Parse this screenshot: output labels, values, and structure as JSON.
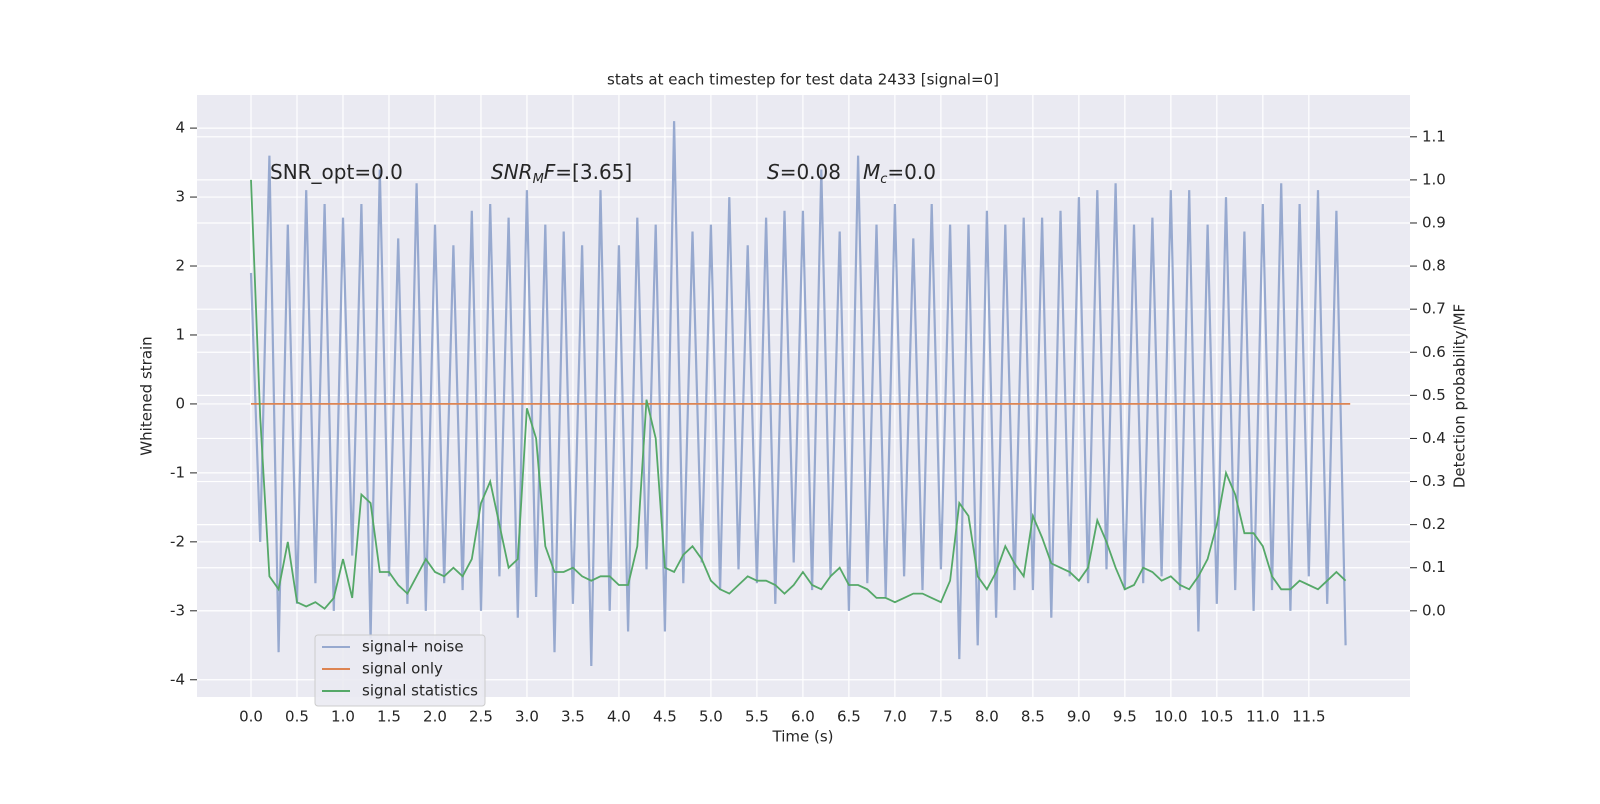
{
  "chart_data": {
    "type": "line",
    "title": "stats at each timestep for test data 2433 [signal=0]",
    "xlabel": "Time (s)",
    "ylabel": "Whitened strain",
    "y2label": "Detection probability/MF",
    "x": [
      0.0,
      0.1,
      0.2,
      0.3,
      0.4,
      0.5,
      0.6,
      0.7,
      0.8,
      0.9,
      1.0,
      1.1,
      1.2,
      1.3,
      1.4,
      1.5,
      1.6,
      1.7,
      1.8,
      1.9,
      2.0,
      2.1,
      2.2,
      2.3,
      2.4,
      2.5,
      2.6,
      2.7,
      2.8,
      2.9,
      3.0,
      3.1,
      3.2,
      3.3,
      3.4,
      3.5,
      3.6,
      3.7,
      3.8,
      3.9,
      4.0,
      4.1,
      4.2,
      4.3,
      4.4,
      4.5,
      4.6,
      4.7,
      4.8,
      4.9,
      5.0,
      5.1,
      5.2,
      5.3,
      5.4,
      5.5,
      5.6,
      5.7,
      5.8,
      5.9,
      6.0,
      6.1,
      6.2,
      6.3,
      6.4,
      6.5,
      6.6,
      6.7,
      6.8,
      6.9,
      7.0,
      7.1,
      7.2,
      7.3,
      7.4,
      7.5,
      7.6,
      7.7,
      7.8,
      7.9,
      8.0,
      8.1,
      8.2,
      8.3,
      8.4,
      8.5,
      8.6,
      8.7,
      8.8,
      8.9,
      9.0,
      9.1,
      9.2,
      9.3,
      9.4,
      9.5,
      9.6,
      9.7,
      9.8,
      9.9,
      10.0,
      10.1,
      10.2,
      10.3,
      10.4,
      10.5,
      10.6,
      10.7,
      10.8,
      10.9,
      11.0,
      11.1,
      11.2,
      11.3,
      11.4,
      11.5,
      11.6,
      11.7,
      11.8,
      11.9
    ],
    "series": [
      {
        "name": "signal+ noise",
        "color": "#97a9cf",
        "values": [
          1.9,
          -2.0,
          3.6,
          -3.6,
          2.6,
          -2.9,
          3.1,
          -2.6,
          2.9,
          -3.0,
          2.7,
          -2.2,
          2.9,
          -3.4,
          3.4,
          -2.5,
          2.4,
          -2.9,
          3.2,
          -3.0,
          2.6,
          -2.6,
          2.3,
          -2.7,
          2.8,
          -3.0,
          2.9,
          -2.5,
          2.7,
          -3.1,
          3.1,
          -2.8,
          2.6,
          -3.6,
          2.5,
          -2.9,
          2.3,
          -3.8,
          3.1,
          -3.0,
          2.3,
          -3.3,
          2.7,
          -2.4,
          2.6,
          -3.3,
          4.1,
          -2.6,
          2.5,
          -2.3,
          2.6,
          -2.7,
          3.0,
          -2.4,
          2.3,
          -2.6,
          2.7,
          -2.9,
          2.8,
          -2.3,
          2.8,
          -2.7,
          3.4,
          -2.5,
          2.5,
          -3.0,
          3.6,
          -2.6,
          2.6,
          -2.8,
          2.9,
          -2.5,
          2.4,
          -2.7,
          2.9,
          -2.4,
          2.6,
          -3.7,
          2.6,
          -3.5,
          2.8,
          -3.1,
          2.6,
          -2.7,
          2.7,
          -2.7,
          2.7,
          -3.1,
          2.8,
          -2.5,
          3.0,
          -2.6,
          3.1,
          -2.4,
          3.2,
          -2.7,
          2.6,
          -2.6,
          2.7,
          -2.5,
          3.1,
          -2.7,
          3.1,
          -3.3,
          2.6,
          -2.9,
          3.0,
          -2.7,
          2.5,
          -3.0,
          2.9,
          -2.7,
          3.2,
          -3.0,
          2.9,
          -2.5,
          3.1,
          -2.9,
          2.8,
          -3.5
        ]
      },
      {
        "name": "signal only",
        "color": "#dd8452",
        "x": [
          0.0,
          11.95
        ],
        "values": [
          0,
          0
        ]
      },
      {
        "name": "signal statistics",
        "color": "#55a868",
        "axis": "y2",
        "values": [
          1.0,
          0.45,
          0.08,
          0.05,
          0.16,
          0.02,
          0.01,
          0.02,
          0.005,
          0.03,
          0.12,
          0.03,
          0.27,
          0.25,
          0.09,
          0.09,
          0.06,
          0.04,
          0.08,
          0.12,
          0.09,
          0.08,
          0.1,
          0.08,
          0.12,
          0.25,
          0.3,
          0.2,
          0.1,
          0.12,
          0.47,
          0.4,
          0.15,
          0.09,
          0.09,
          0.1,
          0.08,
          0.07,
          0.08,
          0.08,
          0.06,
          0.06,
          0.15,
          0.49,
          0.4,
          0.1,
          0.09,
          0.13,
          0.15,
          0.12,
          0.07,
          0.05,
          0.04,
          0.06,
          0.08,
          0.07,
          0.07,
          0.06,
          0.04,
          0.06,
          0.09,
          0.06,
          0.05,
          0.08,
          0.1,
          0.06,
          0.06,
          0.05,
          0.03,
          0.03,
          0.02,
          0.03,
          0.04,
          0.04,
          0.03,
          0.02,
          0.07,
          0.25,
          0.22,
          0.08,
          0.05,
          0.09,
          0.15,
          0.11,
          0.08,
          0.22,
          0.17,
          0.11,
          0.1,
          0.09,
          0.07,
          0.1,
          0.21,
          0.16,
          0.1,
          0.05,
          0.06,
          0.1,
          0.09,
          0.07,
          0.08,
          0.06,
          0.05,
          0.08,
          0.12,
          0.2,
          0.32,
          0.27,
          0.18,
          0.18,
          0.15,
          0.08,
          0.05,
          0.05,
          0.07,
          0.06,
          0.05,
          0.07,
          0.09,
          0.07
        ]
      }
    ],
    "xlim": [
      -0.587,
      12.6
    ],
    "xticks": [
      {
        "value": 0,
        "label": "0.0"
      },
      {
        "value": 0.5,
        "label": "0.5"
      },
      {
        "value": 1,
        "label": "1.0"
      },
      {
        "value": 1.5,
        "label": "1.5"
      },
      {
        "value": 2,
        "label": "2.0"
      },
      {
        "value": 2.5,
        "label": "2.5"
      },
      {
        "value": 3,
        "label": "3.0"
      },
      {
        "value": 3.5,
        "label": "3.5"
      },
      {
        "value": 4,
        "label": "4.0"
      },
      {
        "value": 4.5,
        "label": "4.5"
      },
      {
        "value": 5,
        "label": "5.0"
      },
      {
        "value": 5.5,
        "label": "5.5"
      },
      {
        "value": 6,
        "label": "6.0"
      },
      {
        "value": 6.5,
        "label": "6.5"
      },
      {
        "value": 7,
        "label": "7.0"
      },
      {
        "value": 7.5,
        "label": "7.5"
      },
      {
        "value": 8,
        "label": "8.0"
      },
      {
        "value": 8.5,
        "label": "8.5"
      },
      {
        "value": 9,
        "label": "9.0"
      },
      {
        "value": 9.5,
        "label": "9.5"
      },
      {
        "value": 10,
        "label": "10.0"
      },
      {
        "value": 10.5,
        "label": "10.5"
      },
      {
        "value": 11,
        "label": "11.0"
      },
      {
        "value": 11.5,
        "label": "11.5"
      }
    ],
    "ylim": [
      -4.25,
      4.48
    ],
    "yticks": [
      -4,
      -3,
      -2,
      -1,
      0,
      1,
      2,
      3,
      4
    ],
    "y2lim": [
      -0.2,
      1.197
    ],
    "y2ticks": [
      {
        "value": 0,
        "label": "0.0"
      },
      {
        "value": 0.1,
        "label": "0.1"
      },
      {
        "value": 0.2,
        "label": "0.2"
      },
      {
        "value": 0.3,
        "label": "0.3"
      },
      {
        "value": 0.4,
        "label": "0.4"
      },
      {
        "value": 0.5,
        "label": "0.5"
      },
      {
        "value": 0.6,
        "label": "0.6"
      },
      {
        "value": 0.7,
        "label": "0.7"
      },
      {
        "value": 0.8,
        "label": "0.8"
      },
      {
        "value": 0.9,
        "label": "0.9"
      },
      {
        "value": 1.0,
        "label": "1.0"
      },
      {
        "value": 1.1,
        "label": "1.1"
      }
    ],
    "grid": true,
    "legend": "lower left",
    "annotations": [
      {
        "parts": [
          {
            "text": "SNR_opt=0.0",
            "style": "normal"
          }
        ]
      },
      {
        "parts": [
          {
            "text": "SNR",
            "style": "italic"
          },
          {
            "text": "M",
            "style": "sub"
          },
          {
            "text": "F",
            "style": "italic"
          },
          {
            "text": "=[3.65]",
            "style": "normal"
          }
        ]
      },
      {
        "parts": [
          {
            "text": "S",
            "style": "italic"
          },
          {
            "text": "=0.08",
            "style": "normal"
          },
          {
            "text": "M",
            "style": "italic"
          },
          {
            "text": "c",
            "style": "sub"
          },
          {
            "text": "=0.0",
            "style": "normal"
          }
        ]
      }
    ]
  }
}
